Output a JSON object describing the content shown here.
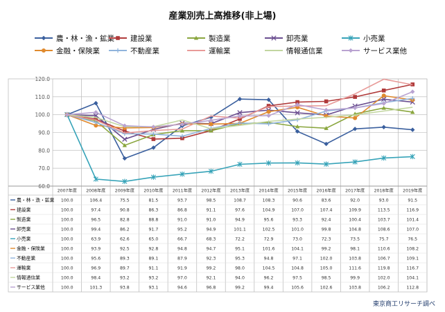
{
  "title": "産業別売上高推移(非上場)",
  "source": "東京商工リサーチ調べ",
  "chart_data": {
    "type": "line",
    "title": "産業別売上高推移(非上場)",
    "ylim": [
      60.0,
      120.0
    ],
    "yticks": [
      "60.0",
      "70.0",
      "80.0",
      "90.0",
      "100.0",
      "110.0",
      "120.0"
    ],
    "grid": true,
    "legend_position": "top",
    "categories": [
      "2007年度",
      "2008年度",
      "2009年度",
      "2010年度",
      "2011年度",
      "2012年度",
      "2013年度",
      "2014年度",
      "2015年度",
      "2016年度",
      "2017年度",
      "2018年度",
      "2019年度"
    ],
    "series": [
      {
        "name": "農・林・漁・鉱業",
        "color": "#3a5f9e",
        "marker": "diamond",
        "values": [
          100.0,
          106.4,
          75.5,
          81.5,
          93.7,
          98.5,
          108.7,
          108.3,
          90.6,
          83.6,
          92.0,
          93.0,
          91.5
        ]
      },
      {
        "name": "建設業",
        "color": "#b03a3a",
        "marker": "square",
        "values": [
          100.0,
          97.4,
          90.8,
          86.3,
          86.8,
          91.1,
          97.6,
          104.9,
          107.0,
          107.4,
          109.9,
          113.5,
          116.9
        ]
      },
      {
        "name": "製造業",
        "color": "#8aa63e",
        "marker": "triangle",
        "values": [
          100.0,
          96.5,
          82.8,
          88.8,
          91.0,
          91.0,
          94.9,
          95.6,
          93.3,
          92.4,
          100.4,
          103.7,
          101.4
        ]
      },
      {
        "name": "卸売業",
        "color": "#6a4d8f",
        "marker": "x",
        "values": [
          100.0,
          99.4,
          86.2,
          91.7,
          95.2,
          94.9,
          101.1,
          102.5,
          101.0,
          99.8,
          104.8,
          108.6,
          107.0
        ]
      },
      {
        "name": "小売業",
        "color": "#36a3b8",
        "marker": "star",
        "values": [
          100.0,
          63.9,
          62.6,
          65.0,
          66.7,
          68.3,
          72.2,
          72.9,
          73.0,
          72.3,
          73.5,
          75.7,
          76.5
        ]
      },
      {
        "name": "金融・保険業",
        "color": "#e08a2e",
        "marker": "circle",
        "values": [
          100.0,
          93.9,
          92.5,
          92.8,
          94.8,
          94.7,
          95.1,
          101.6,
          104.1,
          99.2,
          98.1,
          110.6,
          108.2
        ]
      },
      {
        "name": "不動産業",
        "color": "#90b4dc",
        "marker": "plus",
        "values": [
          100.0,
          95.6,
          89.3,
          89.1,
          87.9,
          92.3,
          95.3,
          94.8,
          97.1,
          102.0,
          103.8,
          106.7,
          109.1
        ]
      },
      {
        "name": "運輸業",
        "color": "#e89a98",
        "marker": "none",
        "values": [
          100.0,
          96.9,
          89.7,
          91.1,
          91.9,
          99.2,
          98.0,
          104.5,
          104.8,
          105.0,
          111.6,
          119.8,
          116.7
        ]
      },
      {
        "name": "情報通信業",
        "color": "#c2d6a0",
        "marker": "none",
        "values": [
          100.0,
          98.4,
          93.2,
          93.2,
          97.0,
          92.1,
          94.0,
          96.2,
          97.5,
          98.5,
          99.9,
          102.0,
          104.1
        ]
      },
      {
        "name": "サービス業他",
        "color": "#b9a3d1",
        "marker": "diamond",
        "values": [
          100.0,
          101.3,
          93.8,
          93.1,
          94.6,
          96.8,
          99.2,
          99.4,
          105.6,
          102.6,
          103.8,
          106.2,
          112.8
        ]
      }
    ],
    "table_rows": [
      {
        "label": "農・林・漁・鉱業",
        "cells": [
          "100.0",
          "106.4",
          "75.5",
          "81.5",
          "93.7",
          "98.5",
          "108.7",
          "108.3",
          "90.6",
          "83.6",
          "92.0",
          "93.0",
          "91.5"
        ]
      },
      {
        "label": "建設業",
        "cells": [
          "100.0",
          "97.4",
          "90.8",
          "86.3",
          "86.8",
          "91.1",
          "97.6",
          "104.9",
          "107.0",
          "107.4",
          "109.9",
          "113.5",
          "116.9"
        ]
      },
      {
        "label": "製造業",
        "cells": [
          "100.0",
          "96.5",
          "82.8",
          "88.8",
          "91.0",
          "91.0",
          "94.9",
          "95.6",
          "93.3",
          "92.4",
          "100.4",
          "103.7",
          "101.4"
        ]
      },
      {
        "label": "卸売業",
        "cells": [
          "100.0",
          "99.4",
          "86.2",
          "91.7",
          "95.2",
          "94.9",
          "101.1",
          "102.5",
          "101.0",
          "99.8",
          "104.8",
          "108.6",
          "107.0"
        ]
      },
      {
        "label": "小売業",
        "cells": [
          "100.0",
          "63.9",
          "62.6",
          "65.0",
          "66.7",
          "68.3",
          "72.2",
          "72.9",
          "73.0",
          "72.3",
          "73.5",
          "75.7",
          "76.5"
        ]
      },
      {
        "label": "金融・保険業",
        "cells": [
          "100.0",
          "93.9",
          "92.5",
          "92.8",
          "94.8",
          "94.7",
          "95.1",
          "101.6",
          "104.1",
          "99.2",
          "98.1",
          "110.6",
          "108.2"
        ]
      },
      {
        "label": "不動産業",
        "cells": [
          "100.0",
          "95.6",
          "89.3",
          "89.1",
          "87.9",
          "92.3",
          "95.3",
          "94.8",
          "97.1",
          "102.0",
          "103.8",
          "106.7",
          "109.1"
        ]
      },
      {
        "label": "運輸業",
        "cells": [
          "100.0",
          "96.9",
          "89.7",
          "91.1",
          "91.9",
          "99.2",
          "98.0",
          "104.5",
          "104.8",
          "105.0",
          "111.6",
          "119.8",
          "116.7"
        ]
      },
      {
        "label": "情報通信業",
        "cells": [
          "100.0",
          "98.4",
          "93.2",
          "93.2",
          "97.0",
          "92.1",
          "94.0",
          "96.2",
          "97.5",
          "98.5",
          "99.9",
          "102.0",
          "104.1"
        ]
      },
      {
        "label": "サービス業他",
        "cells": [
          "100.0",
          "101.3",
          "93.8",
          "93.1",
          "94.6",
          "96.8",
          "99.2",
          "99.4",
          "105.6",
          "102.6",
          "103.8",
          "106.2",
          "112.8"
        ]
      }
    ]
  }
}
